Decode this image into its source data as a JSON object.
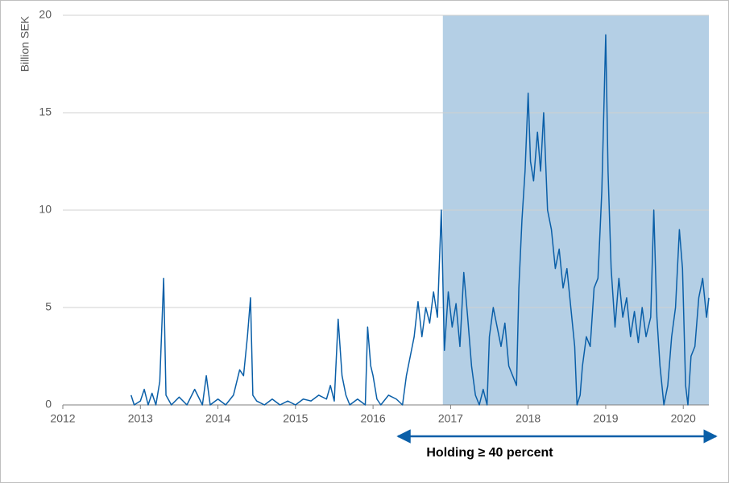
{
  "chart_data": {
    "type": "line",
    "y_label": "Billion SEK",
    "annotation": "Holding ≥ 40 percent",
    "shaded_region": {
      "x": [
        2016.9,
        2020.33
      ],
      "color": "#b4cfe5"
    },
    "xlim": [
      2012,
      2020.33
    ],
    "xticks": [
      2012,
      2013,
      2014,
      2015,
      2016,
      2017,
      2018,
      2019,
      2020
    ],
    "ylim": [
      0,
      20
    ],
    "yticks": [
      0,
      5,
      10,
      15,
      20
    ],
    "grid": true,
    "color": "#0a5fa8",
    "x": [
      2012.88,
      2012.92,
      2013.0,
      2013.05,
      2013.1,
      2013.15,
      2013.2,
      2013.25,
      2013.3,
      2013.33,
      2013.4,
      2013.5,
      2013.6,
      2013.7,
      2013.8,
      2013.85,
      2013.9,
      2014.0,
      2014.1,
      2014.2,
      2014.28,
      2014.33,
      2014.38,
      2014.42,
      2014.45,
      2014.5,
      2014.6,
      2014.7,
      2014.8,
      2014.9,
      2015.0,
      2015.1,
      2015.2,
      2015.3,
      2015.4,
      2015.45,
      2015.5,
      2015.55,
      2015.6,
      2015.65,
      2015.7,
      2015.8,
      2015.9,
      2015.93,
      2015.97,
      2016.0,
      2016.05,
      2016.1,
      2016.2,
      2016.3,
      2016.38,
      2016.43,
      2016.48,
      2016.53,
      2016.58,
      2016.63,
      2016.68,
      2016.73,
      2016.78,
      2016.83,
      2016.88,
      2016.92,
      2016.97,
      2017.02,
      2017.07,
      2017.12,
      2017.17,
      2017.22,
      2017.27,
      2017.32,
      2017.37,
      2017.42,
      2017.47,
      2017.5,
      2017.55,
      2017.6,
      2017.65,
      2017.7,
      2017.75,
      2017.8,
      2017.85,
      2017.88,
      2017.92,
      2017.96,
      2018.0,
      2018.03,
      2018.07,
      2018.12,
      2018.16,
      2018.2,
      2018.25,
      2018.3,
      2018.35,
      2018.4,
      2018.45,
      2018.5,
      2018.55,
      2018.6,
      2018.63,
      2018.67,
      2018.7,
      2018.75,
      2018.8,
      2018.85,
      2018.9,
      2018.95,
      2019.0,
      2019.03,
      2019.07,
      2019.12,
      2019.17,
      2019.22,
      2019.27,
      2019.32,
      2019.37,
      2019.42,
      2019.47,
      2019.52,
      2019.58,
      2019.62,
      2019.66,
      2019.7,
      2019.75,
      2019.8,
      2019.85,
      2019.9,
      2019.95,
      2019.99,
      2020.03,
      2020.06,
      2020.1,
      2020.15,
      2020.2,
      2020.25,
      2020.3,
      2020.33
    ],
    "values": [
      0.5,
      0,
      0.2,
      0.8,
      0,
      0.6,
      0,
      1.2,
      6.5,
      0.5,
      0,
      0.4,
      0,
      0.8,
      0,
      1.5,
      0,
      0.3,
      0,
      0.5,
      1.8,
      1.5,
      3.5,
      5.5,
      0.5,
      0.2,
      0,
      0.3,
      0,
      0.2,
      0,
      0.3,
      0.2,
      0.5,
      0.3,
      1.0,
      0.2,
      4.4,
      1.5,
      0.5,
      0,
      0.3,
      0,
      4.0,
      2.0,
      1.5,
      0.3,
      0,
      0.5,
      0.3,
      0,
      1.5,
      2.5,
      3.5,
      5.3,
      3.5,
      5.0,
      4.2,
      5.8,
      4.5,
      10.0,
      2.8,
      5.8,
      4.0,
      5.2,
      3.0,
      6.8,
      4.5,
      2.0,
      0.5,
      0,
      0.8,
      0,
      3.5,
      5.0,
      4.0,
      3.0,
      4.2,
      2.0,
      1.5,
      1.0,
      6.0,
      9.5,
      12.0,
      16.0,
      12.5,
      11.5,
      14.0,
      12.0,
      15.0,
      10.0,
      9.0,
      7.0,
      8.0,
      6.0,
      7.0,
      5.0,
      3.0,
      0,
      0.5,
      2.0,
      3.5,
      3.0,
      6.0,
      6.5,
      11.0,
      19.0,
      12.0,
      7.0,
      4.0,
      6.5,
      4.5,
      5.5,
      3.5,
      4.8,
      3.2,
      5.0,
      3.5,
      4.5,
      10.0,
      4.5,
      2.0,
      0,
      1.0,
      3.5,
      5.0,
      9.0,
      7.0,
      1.0,
      0,
      2.5,
      3.0,
      5.5,
      6.5,
      4.5,
      5.5
    ]
  }
}
